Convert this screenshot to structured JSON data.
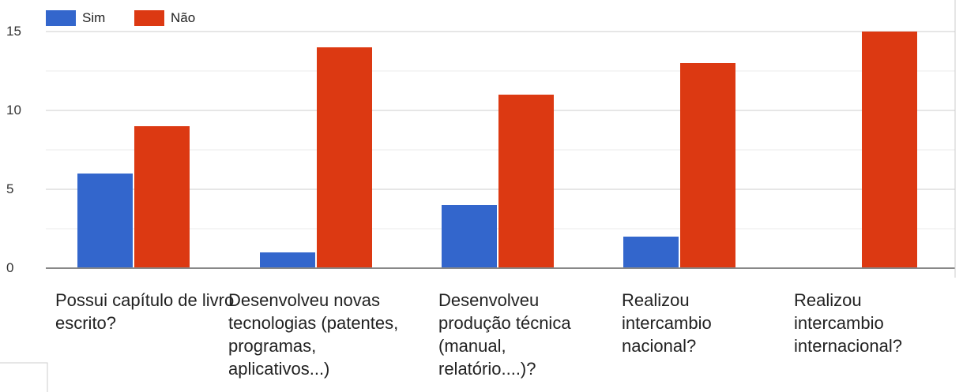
{
  "chart_data": {
    "type": "bar",
    "categories": [
      "Possui capítulo de livro escrito?",
      "Desenvolveu novas tecnologias (patentes, programas, aplicativos...)",
      "Desenvolveu produção técnica (manual, relatório....)?",
      "Realizou intercambio nacional?",
      "Realizou intercambio internacional?"
    ],
    "series": [
      {
        "name": "Sim",
        "color": "#3366cc",
        "values": [
          6,
          1,
          4,
          2,
          0
        ]
      },
      {
        "name": "Não",
        "color": "#dc3912",
        "values": [
          9,
          14,
          11,
          13,
          15
        ]
      }
    ],
    "yticks": [
      "0",
      "5",
      "10",
      "15"
    ],
    "ylim": [
      0,
      15
    ],
    "grid": true,
    "legend_position": "top-left",
    "title": "",
    "xlabel": "",
    "ylabel": ""
  }
}
